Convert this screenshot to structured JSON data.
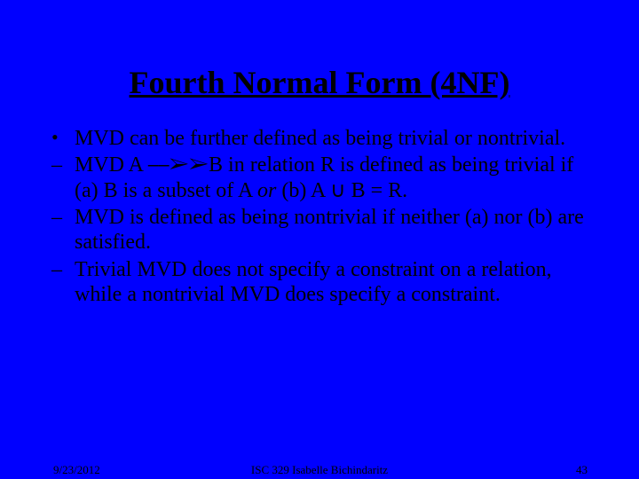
{
  "background_color": "#0000ff",
  "text_color": "#000000",
  "title": "Fourth Normal Form (4NF)",
  "title_fontsize": 36,
  "body_fontsize": 24,
  "footer_fontsize": 13,
  "bullets": {
    "b1": "MVD can be further defined as being trivial or nontrivial.",
    "b2_pre": "MVD  A  ",
    "b2_arrow": "⎯⎯➢➢",
    "b2_mid": "B  in relation R is defined as being trivial if (a) B is a subset of A ",
    "b2_or": "or",
    "b2_post": " (b) A ∪ B = R.",
    "b3": "MVD is defined as being nontrivial if neither (a) nor (b) are satisfied.",
    "b4": "Trivial MVD does not specify a constraint on a relation, while a nontrivial MVD does specify a constraint."
  },
  "footer": {
    "date": "9/23/2012",
    "center": "ISC 329   Isabelle Bichindaritz",
    "page": "43"
  }
}
